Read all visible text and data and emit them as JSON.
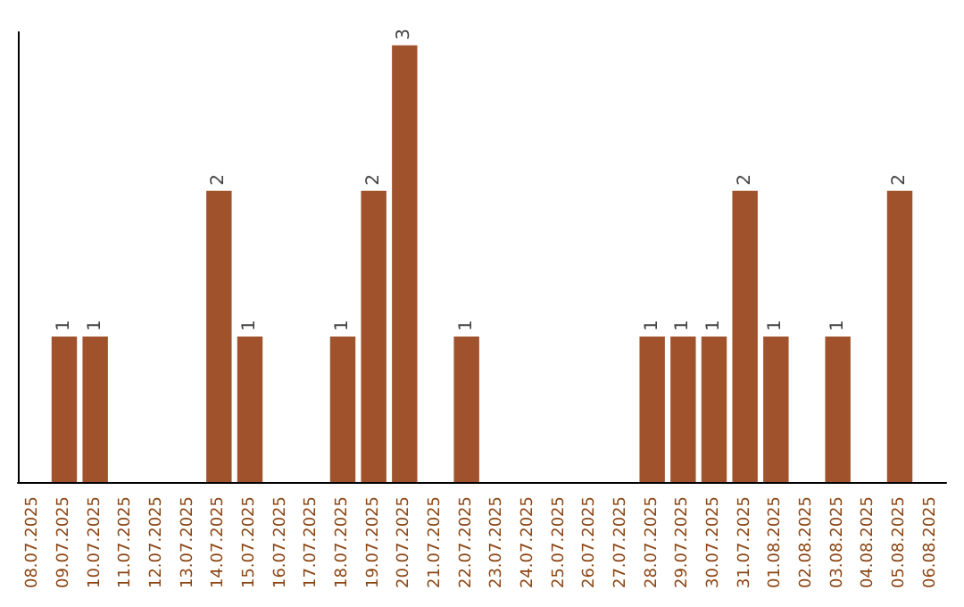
{
  "chart_data": {
    "type": "bar",
    "categories": [
      "08.07.2025",
      "09.07.2025",
      "10.07.2025",
      "11.07.2025",
      "12.07.2025",
      "13.07.2025",
      "14.07.2025",
      "15.07.2025",
      "16.07.2025",
      "17.07.2025",
      "18.07.2025",
      "19.07.2025",
      "20.07.2025",
      "21.07.2025",
      "22.07.2025",
      "23.07.2025",
      "24.07.2025",
      "25.07.2025",
      "26.07.2025",
      "27.07.2025",
      "28.07.2025",
      "29.07.2025",
      "30.07.2025",
      "31.07.2025",
      "01.08.2025",
      "02.08.2025",
      "03.08.2025",
      "04.08.2025",
      "05.08.2025",
      "06.08.2025"
    ],
    "values": [
      0,
      1,
      1,
      0,
      0,
      0,
      2,
      1,
      0,
      0,
      1,
      2,
      3,
      0,
      1,
      0,
      0,
      0,
      0,
      0,
      1,
      1,
      1,
      2,
      1,
      0,
      1,
      0,
      2,
      0
    ],
    "value_labels": [
      null,
      "1",
      "1",
      null,
      null,
      null,
      "2",
      "1",
      null,
      null,
      "1",
      "2",
      "3",
      null,
      "1",
      null,
      null,
      null,
      null,
      null,
      "1",
      "1",
      "1",
      "2",
      "1",
      null,
      "1",
      null,
      "2",
      null
    ],
    "color": "#a0522d",
    "tick_labels": "x"
  }
}
